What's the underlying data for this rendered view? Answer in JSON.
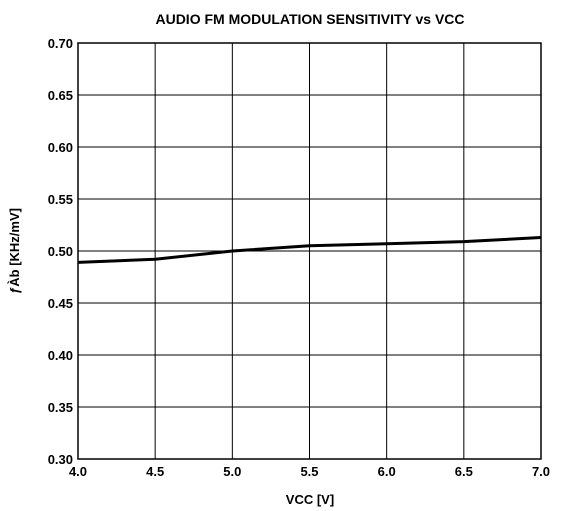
{
  "chart_data": {
    "type": "line",
    "title": "AUDIO FM MODULATION SENSITIVITY vs VCC",
    "xlabel": "VCC [V]",
    "ylabel": "ƒÀb [KHz/mV]",
    "xlim": [
      4.0,
      7.0
    ],
    "ylim": [
      0.3,
      0.7
    ],
    "x_ticks": [
      "4.0",
      "4.5",
      "5.0",
      "5.5",
      "6.0",
      "6.5",
      "7.0"
    ],
    "y_ticks": [
      "0.30",
      "0.35",
      "0.40",
      "0.45",
      "0.50",
      "0.55",
      "0.60",
      "0.65",
      "0.70"
    ],
    "grid": true,
    "series": [
      {
        "x": [
          4.0,
          4.5,
          5.0,
          5.5,
          6.0,
          6.5,
          7.0
        ],
        "y": [
          0.489,
          0.492,
          0.5,
          0.505,
          0.507,
          0.509,
          0.513
        ]
      }
    ]
  }
}
